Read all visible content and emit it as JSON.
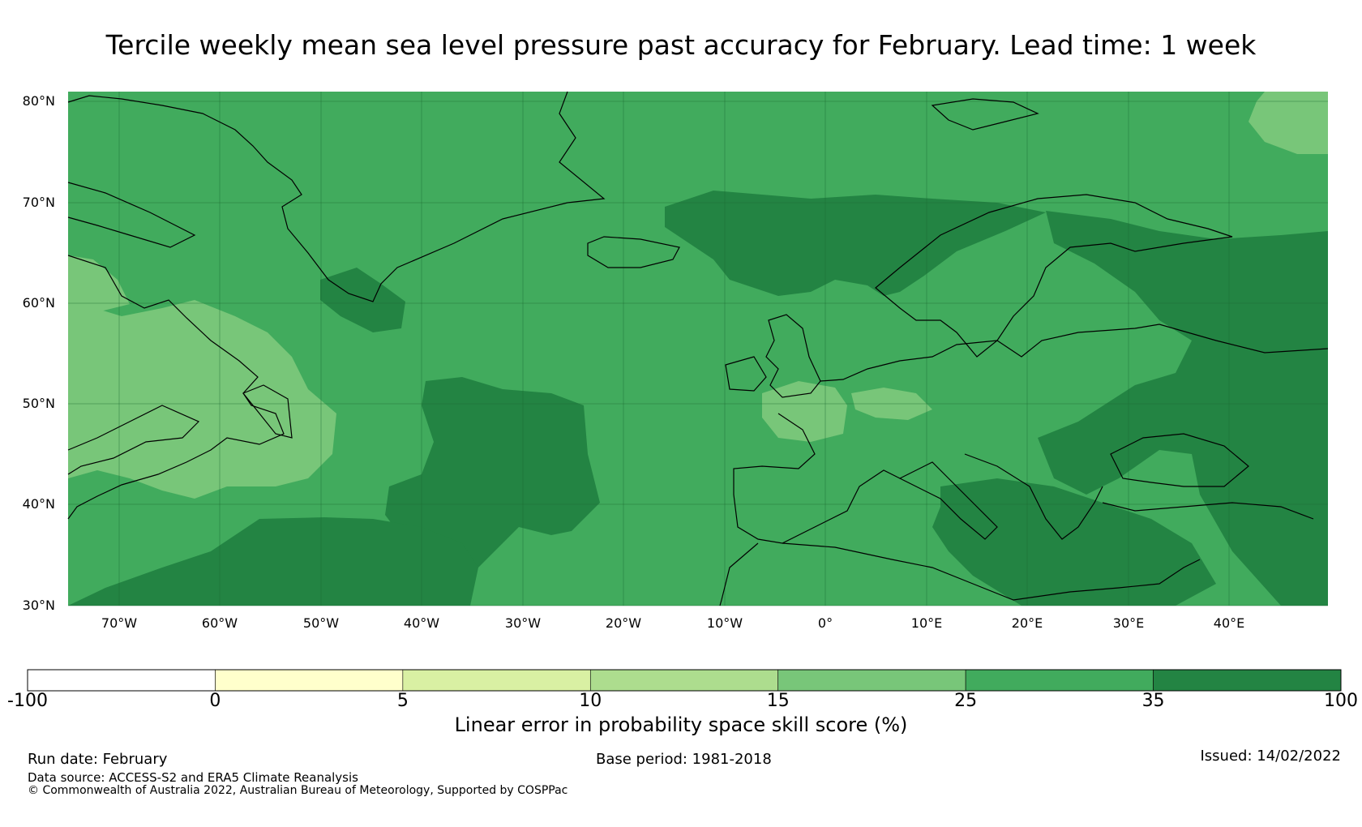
{
  "title": "Tercile weekly mean sea level pressure past accuracy for February. Lead time: 1 week",
  "map": {
    "lat_labels": [
      "80°N",
      "70°N",
      "60°N",
      "50°N",
      "40°N",
      "30°N"
    ],
    "lon_labels": [
      "70°W",
      "60°W",
      "50°W",
      "40°W",
      "30°W",
      "20°W",
      "10°W",
      "0°",
      "10°E",
      "20°E",
      "30°E",
      "40°E"
    ],
    "colors": {
      "class_25_35": "#41ab5d",
      "class_35_100": "#238443",
      "class_15_25": "#78c679"
    }
  },
  "colorbar": {
    "ticks": [
      "-100",
      "0",
      "5",
      "10",
      "15",
      "25",
      "35",
      "100"
    ],
    "colors": [
      "#ffffff",
      "#ffffcc",
      "#d9f0a3",
      "#addd8e",
      "#78c679",
      "#41ab5d",
      "#238443"
    ],
    "label": "Linear error in probability space skill score (%)"
  },
  "footer": {
    "run_date": "Run date: February",
    "base_period": "Base period: 1981-2018",
    "issued": "Issued: 14/02/2022",
    "data_source": "Data source: ACCESS-S2 and ERA5 Climate Reanalysis",
    "copyright": "© Commonwealth of Australia 2022, Australian Bureau of Meteorology, Supported by COSPPac"
  }
}
